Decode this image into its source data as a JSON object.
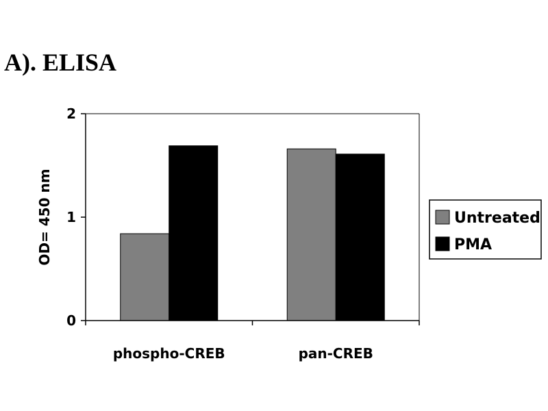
{
  "panel_label": "A). ELISA",
  "chart_data": {
    "type": "bar",
    "title": "",
    "xlabel": "",
    "ylabel": "OD= 450 nm",
    "ylim": [
      0,
      2
    ],
    "yticks": [
      0,
      1,
      2
    ],
    "categories": [
      "phospho-CREB",
      "pan-CREB"
    ],
    "series": [
      {
        "name": "Untreated",
        "values": [
          0.84,
          1.66
        ],
        "color": "#808080"
      },
      {
        "name": "PMA",
        "values": [
          1.69,
          1.61
        ],
        "color": "#000000"
      }
    ],
    "grid": false,
    "legend_position": "right"
  }
}
